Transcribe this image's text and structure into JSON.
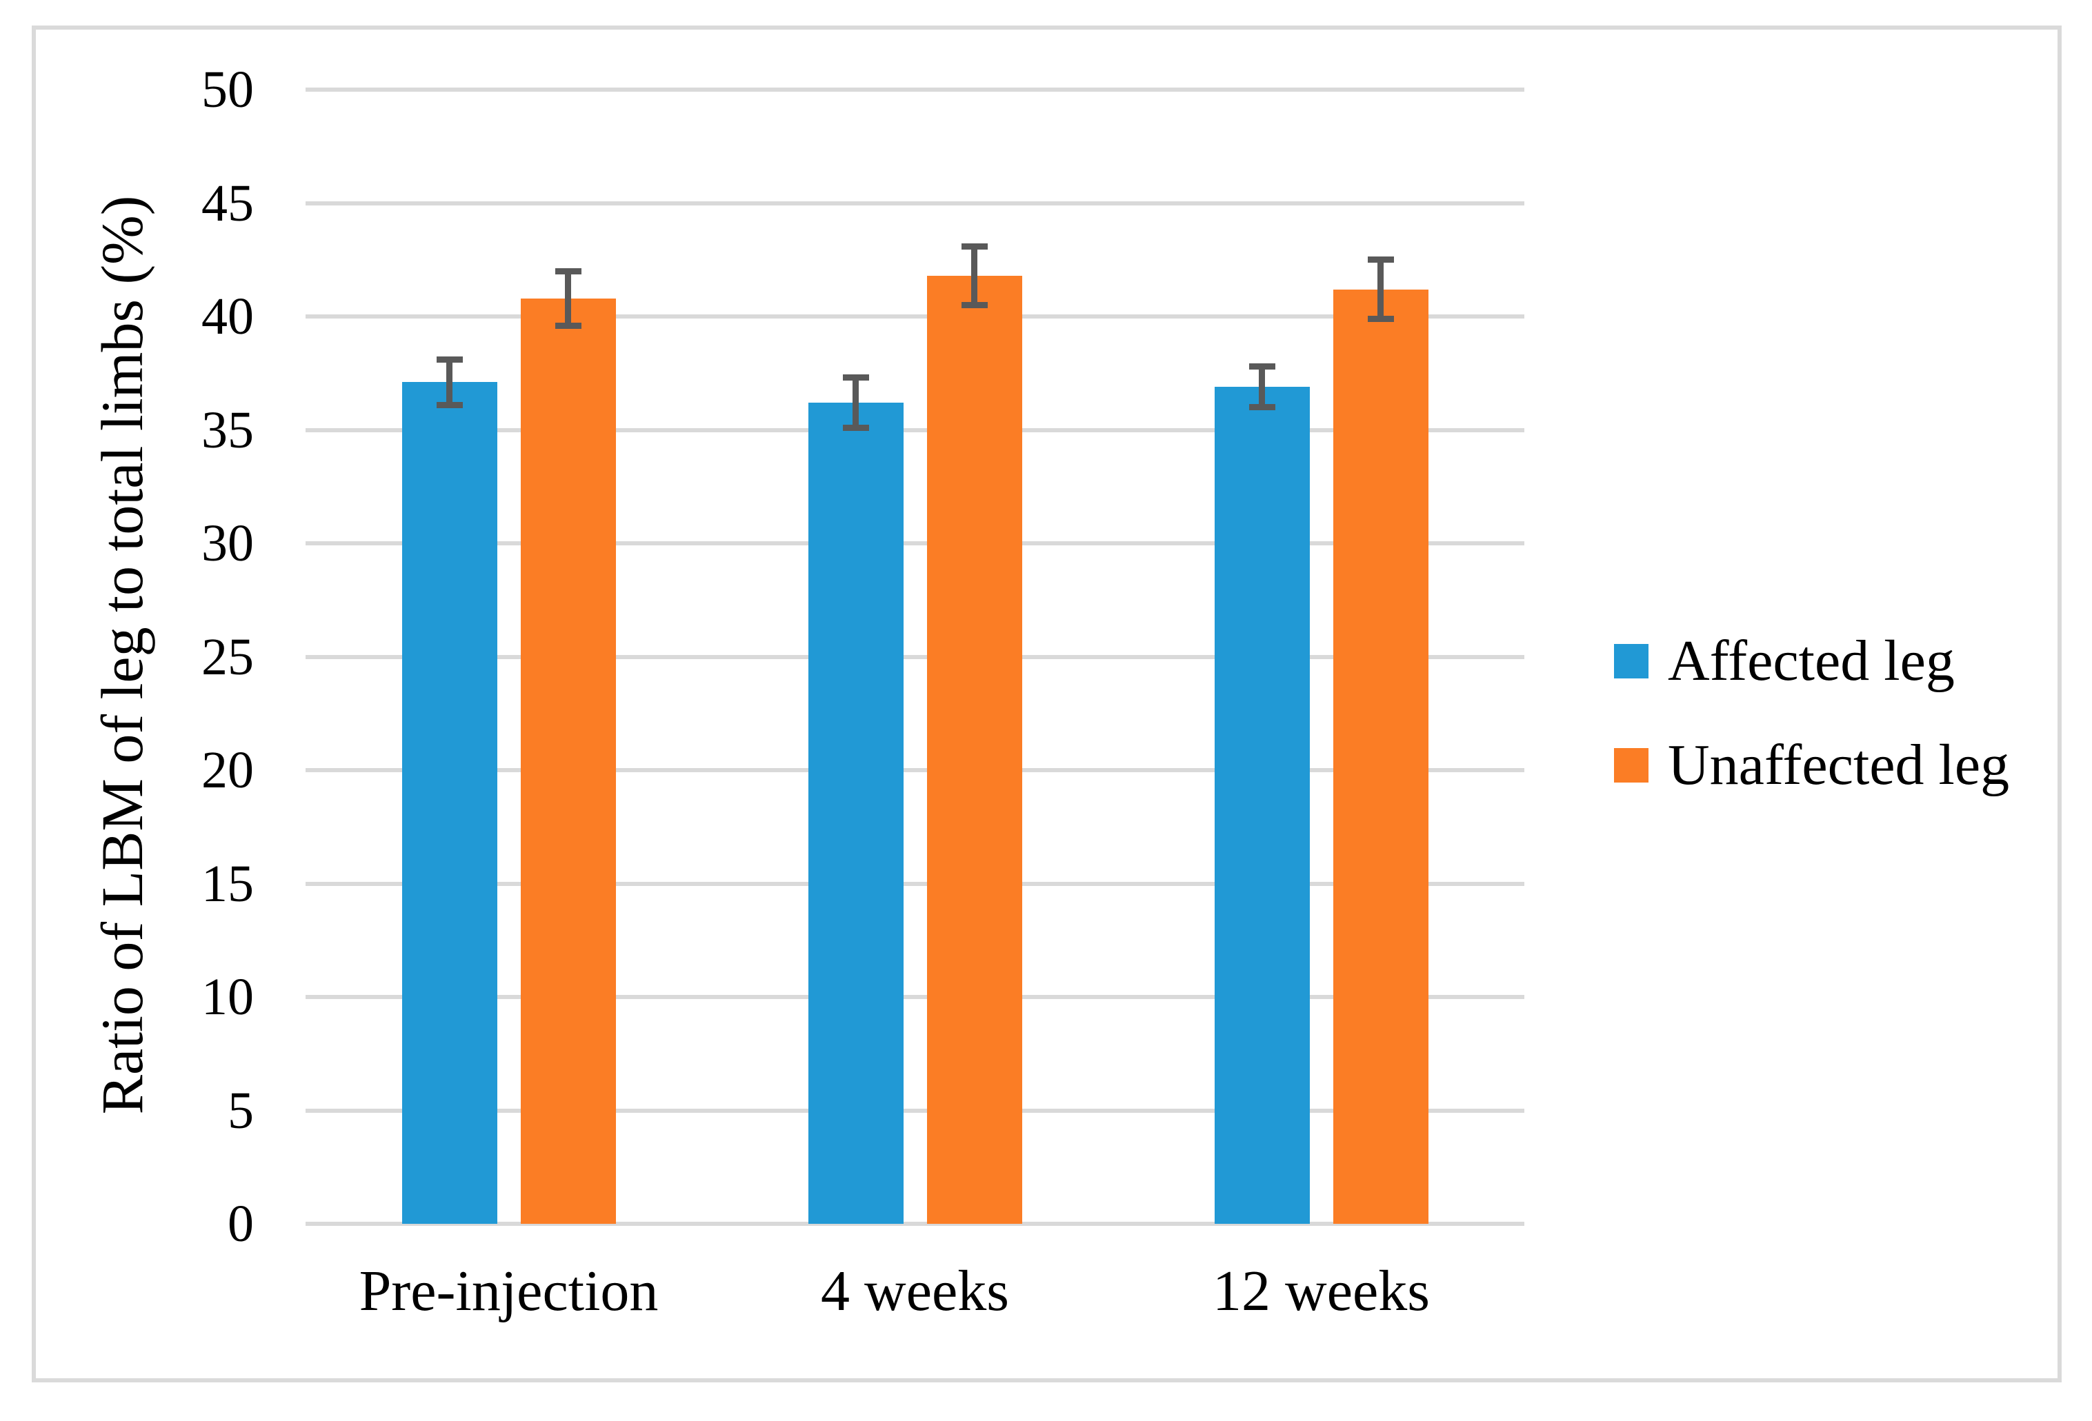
{
  "figure": {
    "background_color": "#FFFFFF",
    "frame_border_color": "#DADADA"
  },
  "chart_data": {
    "type": "bar",
    "title": "",
    "categories": [
      "Pre-injection",
      "4 weeks",
      "12 weeks"
    ],
    "series": [
      {
        "name": "Affected leg",
        "color": "#2199D5",
        "values": [
          37.1,
          36.2,
          36.9
        ],
        "error_bars": [
          1.0,
          1.1,
          0.9
        ]
      },
      {
        "name": "Unaffected leg",
        "color": "#FB7D25",
        "values": [
          40.8,
          41.8,
          41.2
        ],
        "error_bars": [
          1.2,
          1.3,
          1.3
        ]
      }
    ],
    "xlabel": "",
    "ylabel": "Ratio of LBM of leg to total limbs (%)",
    "ylim": [
      0,
      50
    ],
    "ytick_step": 5,
    "yticks": [
      0,
      5,
      10,
      15,
      20,
      25,
      30,
      35,
      40,
      45,
      50
    ],
    "grid": true,
    "gridline_color": "#D9D9D9",
    "error_bar_color": "#595959",
    "legend_position": "right"
  }
}
